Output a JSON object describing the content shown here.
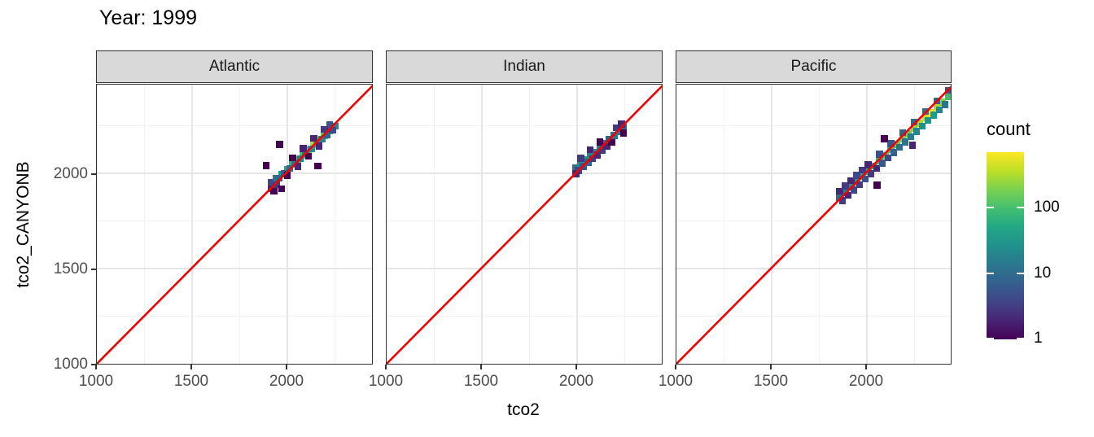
{
  "title": "Year: 1999",
  "axes": {
    "x_title": "tco2",
    "y_title": "tco2_CANYONB",
    "x_tick_labels": [
      "1000",
      "1500",
      "2000"
    ],
    "y_tick_labels": [
      "2000",
      "1500",
      "1000"
    ]
  },
  "legend": {
    "title": "count",
    "tick_labels": [
      "100",
      "10",
      "1"
    ],
    "scale": "log10",
    "scale_min": 1,
    "scale_max": 700,
    "viridis_stops": [
      "#440154",
      "#482475",
      "#414487",
      "#355f8d",
      "#2a788e",
      "#21918c",
      "#22a884",
      "#44bf70",
      "#7ad151",
      "#bddf26",
      "#fde725"
    ]
  },
  "colors": {
    "identity_line": "#f40000",
    "strip_background": "#d9d9d9",
    "panel_border": "#333333"
  },
  "chart_data": {
    "type": "heatmap",
    "subtype": "geom_bin2d faceted scatter of tco2 vs tco2_CANYONB with y=x reference line",
    "title": "Year: 1999",
    "xlabel": "tco2",
    "ylabel": "tco2_CANYONB",
    "xlim": [
      1000,
      2455
    ],
    "ylim": [
      1000,
      2467
    ],
    "x_ticks": [
      1000,
      1500,
      2000
    ],
    "y_ticks": [
      1000,
      1500,
      2000
    ],
    "grid": "major and minor, light gray on white",
    "identity_line": "y = x (red)",
    "legend_title": "count",
    "legend_ticks": [
      100,
      10,
      1
    ],
    "facets": [
      {
        "label": "Atlantic",
        "bins": [
          [
            1916,
            1952,
            4
          ],
          [
            1944,
            1972,
            12
          ],
          [
            1972,
            1996,
            30
          ],
          [
            2000,
            2022,
            45
          ],
          [
            2028,
            2048,
            70
          ],
          [
            2056,
            2072,
            110
          ],
          [
            2084,
            2098,
            90
          ],
          [
            2112,
            2124,
            160
          ],
          [
            2140,
            2150,
            320
          ],
          [
            2168,
            2176,
            220
          ],
          [
            2196,
            2200,
            130
          ],
          [
            2224,
            2226,
            60
          ],
          [
            2252,
            2250,
            20
          ],
          [
            1916,
            1920,
            2
          ],
          [
            1944,
            1940,
            3
          ],
          [
            1958,
            1975,
            8
          ],
          [
            1986,
            2000,
            6
          ],
          [
            2014,
            2026,
            9
          ],
          [
            2042,
            2052,
            12
          ],
          [
            2070,
            2078,
            15
          ],
          [
            2098,
            2104,
            10
          ],
          [
            2126,
            2130,
            25
          ],
          [
            2154,
            2155,
            40
          ],
          [
            2182,
            2180,
            18
          ],
          [
            2210,
            2205,
            8
          ],
          [
            2238,
            2228,
            4
          ],
          [
            2000,
            1990,
            1
          ],
          [
            2056,
            2038,
            2
          ],
          [
            2112,
            2090,
            1
          ],
          [
            2168,
            2145,
            2
          ],
          [
            2224,
            2256,
            6
          ],
          [
            2196,
            2232,
            3
          ],
          [
            2140,
            2185,
            2
          ],
          [
            2084,
            2132,
            2
          ],
          [
            2028,
            2082,
            1
          ],
          [
            1970,
            1919,
            1
          ],
          [
            2162,
            2039,
            1
          ],
          [
            1960,
            2152,
            1
          ],
          [
            1890,
            2042,
            1
          ],
          [
            1930,
            1906,
            1
          ]
        ]
      },
      {
        "label": "Indian",
        "bins": [
          [
            1995,
            2030,
            12
          ],
          [
            2020,
            2052,
            25
          ],
          [
            2045,
            2072,
            35
          ],
          [
            2070,
            2092,
            20
          ],
          [
            2095,
            2112,
            28
          ],
          [
            2120,
            2134,
            15
          ],
          [
            2145,
            2156,
            10
          ],
          [
            2170,
            2178,
            8
          ],
          [
            2195,
            2200,
            12
          ],
          [
            2220,
            2222,
            15
          ],
          [
            2245,
            2244,
            8
          ],
          [
            2008,
            2015,
            4
          ],
          [
            2033,
            2038,
            6
          ],
          [
            2058,
            2058,
            8
          ],
          [
            2083,
            2078,
            3
          ],
          [
            2108,
            2098,
            2
          ],
          [
            2133,
            2120,
            3
          ],
          [
            2158,
            2142,
            2
          ],
          [
            2183,
            2164,
            1
          ],
          [
            2020,
            2080,
            3
          ],
          [
            2070,
            2125,
            2
          ],
          [
            2120,
            2165,
            1
          ],
          [
            2208,
            2240,
            3
          ],
          [
            2233,
            2260,
            2
          ],
          [
            1995,
            1998,
            2
          ],
          [
            2245,
            2212,
            1
          ]
        ]
      },
      {
        "label": "Pacific",
        "bins": [
          [
            1858,
            1872,
            10
          ],
          [
            1888,
            1900,
            18
          ],
          [
            1918,
            1928,
            25
          ],
          [
            1948,
            1956,
            35
          ],
          [
            1978,
            1984,
            50
          ],
          [
            2008,
            2012,
            65
          ],
          [
            2038,
            2040,
            55
          ],
          [
            2068,
            2068,
            85
          ],
          [
            2098,
            2096,
            110
          ],
          [
            2128,
            2124,
            95
          ],
          [
            2158,
            2152,
            140
          ],
          [
            2188,
            2180,
            180
          ],
          [
            2218,
            2208,
            160
          ],
          [
            2248,
            2236,
            220
          ],
          [
            2278,
            2264,
            300
          ],
          [
            2308,
            2292,
            380
          ],
          [
            2338,
            2320,
            600
          ],
          [
            2368,
            2348,
            330
          ],
          [
            2398,
            2376,
            200
          ],
          [
            2428,
            2404,
            90
          ],
          [
            1872,
            1858,
            3
          ],
          [
            1902,
            1886,
            2
          ],
          [
            1932,
            1914,
            4
          ],
          [
            1962,
            1942,
            3
          ],
          [
            1992,
            1970,
            5
          ],
          [
            2022,
            1998,
            3
          ],
          [
            2052,
            2026,
            2
          ],
          [
            2082,
            2054,
            6
          ],
          [
            2112,
            2082,
            4
          ],
          [
            2142,
            2110,
            8
          ],
          [
            2172,
            2138,
            10
          ],
          [
            2202,
            2166,
            12
          ],
          [
            2232,
            2194,
            15
          ],
          [
            2262,
            2222,
            20
          ],
          [
            2292,
            2250,
            25
          ],
          [
            2322,
            2278,
            30
          ],
          [
            2352,
            2306,
            35
          ],
          [
            2382,
            2334,
            20
          ],
          [
            2412,
            2362,
            12
          ],
          [
            1858,
            1906,
            2
          ],
          [
            1888,
            1934,
            3
          ],
          [
            1918,
            1962,
            2
          ],
          [
            1948,
            1990,
            4
          ],
          [
            1978,
            2018,
            3
          ],
          [
            2008,
            2046,
            2
          ],
          [
            2068,
            2102,
            5
          ],
          [
            2128,
            2158,
            6
          ],
          [
            2188,
            2214,
            8
          ],
          [
            2248,
            2270,
            10
          ],
          [
            2308,
            2326,
            12
          ],
          [
            2368,
            2382,
            8
          ],
          [
            2428,
            2438,
            5
          ],
          [
            2055,
            1938,
            1
          ],
          [
            2092,
            2182,
            1
          ],
          [
            2240,
            2148,
            2
          ]
        ]
      }
    ]
  }
}
